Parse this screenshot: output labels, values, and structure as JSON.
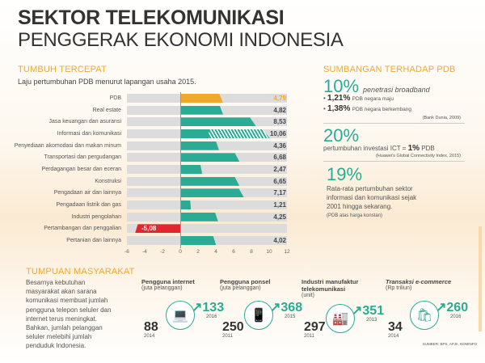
{
  "header": {
    "title": "SEKTOR TELEKOMUNIKASI",
    "subtitle": "PENGGERAK EKONOMI INDONESIA"
  },
  "left": {
    "section": "TUMBUH TERCEPAT",
    "caption": "Laju pertumbuhan PDB menurut lapangan usaha 2015."
  },
  "chart_data": {
    "type": "bar",
    "orientation": "horizontal",
    "title": "Laju pertumbuhan PDB menurut lapangan usaha 2015.",
    "categories": [
      "PDB",
      "Real estate",
      "Jasa keuangan dan asuransi",
      "Informasi dan komunikasi",
      "Penyediaan akomodasi dan makan minum",
      "Transportasi dan pergudangan",
      "Perdagangan besar dan eceran",
      "Konstruksi",
      "Pengadaan air dan lainnya",
      "Pengadaan listrik dan gas",
      "Industri pengolahan",
      "Pertambangan dan penggalian",
      "Pertanian dan lainnya"
    ],
    "values": [
      4.79,
      4.82,
      8.53,
      10.06,
      4.36,
      6.68,
      2.47,
      6.65,
      7.17,
      1.21,
      4.25,
      -5.08,
      4.02
    ],
    "value_labels": [
      "4,79",
      "4,82",
      "8,53",
      "10,06",
      "4,36",
      "6,68",
      "2,47",
      "6,65",
      "7,17",
      "1,21",
      "4,25",
      "-5,08",
      "4,02"
    ],
    "xlim": [
      -6,
      12
    ],
    "xticks": [
      "-6",
      "-4",
      "-2",
      "0",
      "2",
      "4",
      "6",
      "8",
      "10",
      "12"
    ],
    "colors": {
      "PDB": "#f0a830",
      "positive": "#2bab93",
      "negative": "#e0262e",
      "highlight": "hatched",
      "track": "#dcdcdc"
    },
    "grid": false
  },
  "right": {
    "section": "SUMBANGAN TERHADAP PDB",
    "s1": {
      "big": "10%",
      "text": "penetrasi broadband",
      "b1n": "1,21%",
      "b1t": "PDB negara maju",
      "b2n": "1,38%",
      "b2t": "PDB negara berkembang",
      "src": "(Bank Dunia, 2009)"
    },
    "s2": {
      "big": "20%",
      "text": "pertumbuhan investasi ICT =",
      "n": "1%",
      "t": "PDB",
      "src": "(Huawei's Global Connectivity Index, 2015)"
    },
    "s3": {
      "big": "19%",
      "text": "Rata-rata pertumbuhan sektor informasi dan komunikasi sejak 2001 hingga sekarang.",
      "note": "(PDB atas harga konstan)"
    }
  },
  "bottom": {
    "section": "TUMPUAN MASYARAKAT",
    "text": "Besarnya kebutuhan masyarakat akan sarana komunikasi membuat jumlah pengguna telepon seluler dan internet terus meningkat. Bahkan, jumlah pelanggan seluler melebihi jumlah penduduk Indonesia.",
    "stats": [
      {
        "title": "Pengguna internet",
        "unit": "(juta pelanggan)",
        "from": "88",
        "from_year": "2014",
        "to": "133",
        "to_year": "2016",
        "icon": "laptop-icon"
      },
      {
        "title": "Pengguna ponsel",
        "unit": "(juta pelanggan)",
        "from": "250",
        "from_year": "2011",
        "to": "368",
        "to_year": "2015",
        "icon": "phone-icon"
      },
      {
        "title": "Industri manufaktur telekomunikasi",
        "unit": "(unit)",
        "from": "297",
        "from_year": "2011",
        "to": "351",
        "to_year": "2013",
        "icon": "factory-icon"
      },
      {
        "title": "Transaksi e-commerce",
        "unit": "(Rp triliun)",
        "from": "34",
        "from_year": "2014",
        "to": "260",
        "to_year": "2016",
        "icon": "shopping-bag-icon"
      }
    ],
    "source": "SUMBER: BPS, APJII, KOMINFO"
  }
}
